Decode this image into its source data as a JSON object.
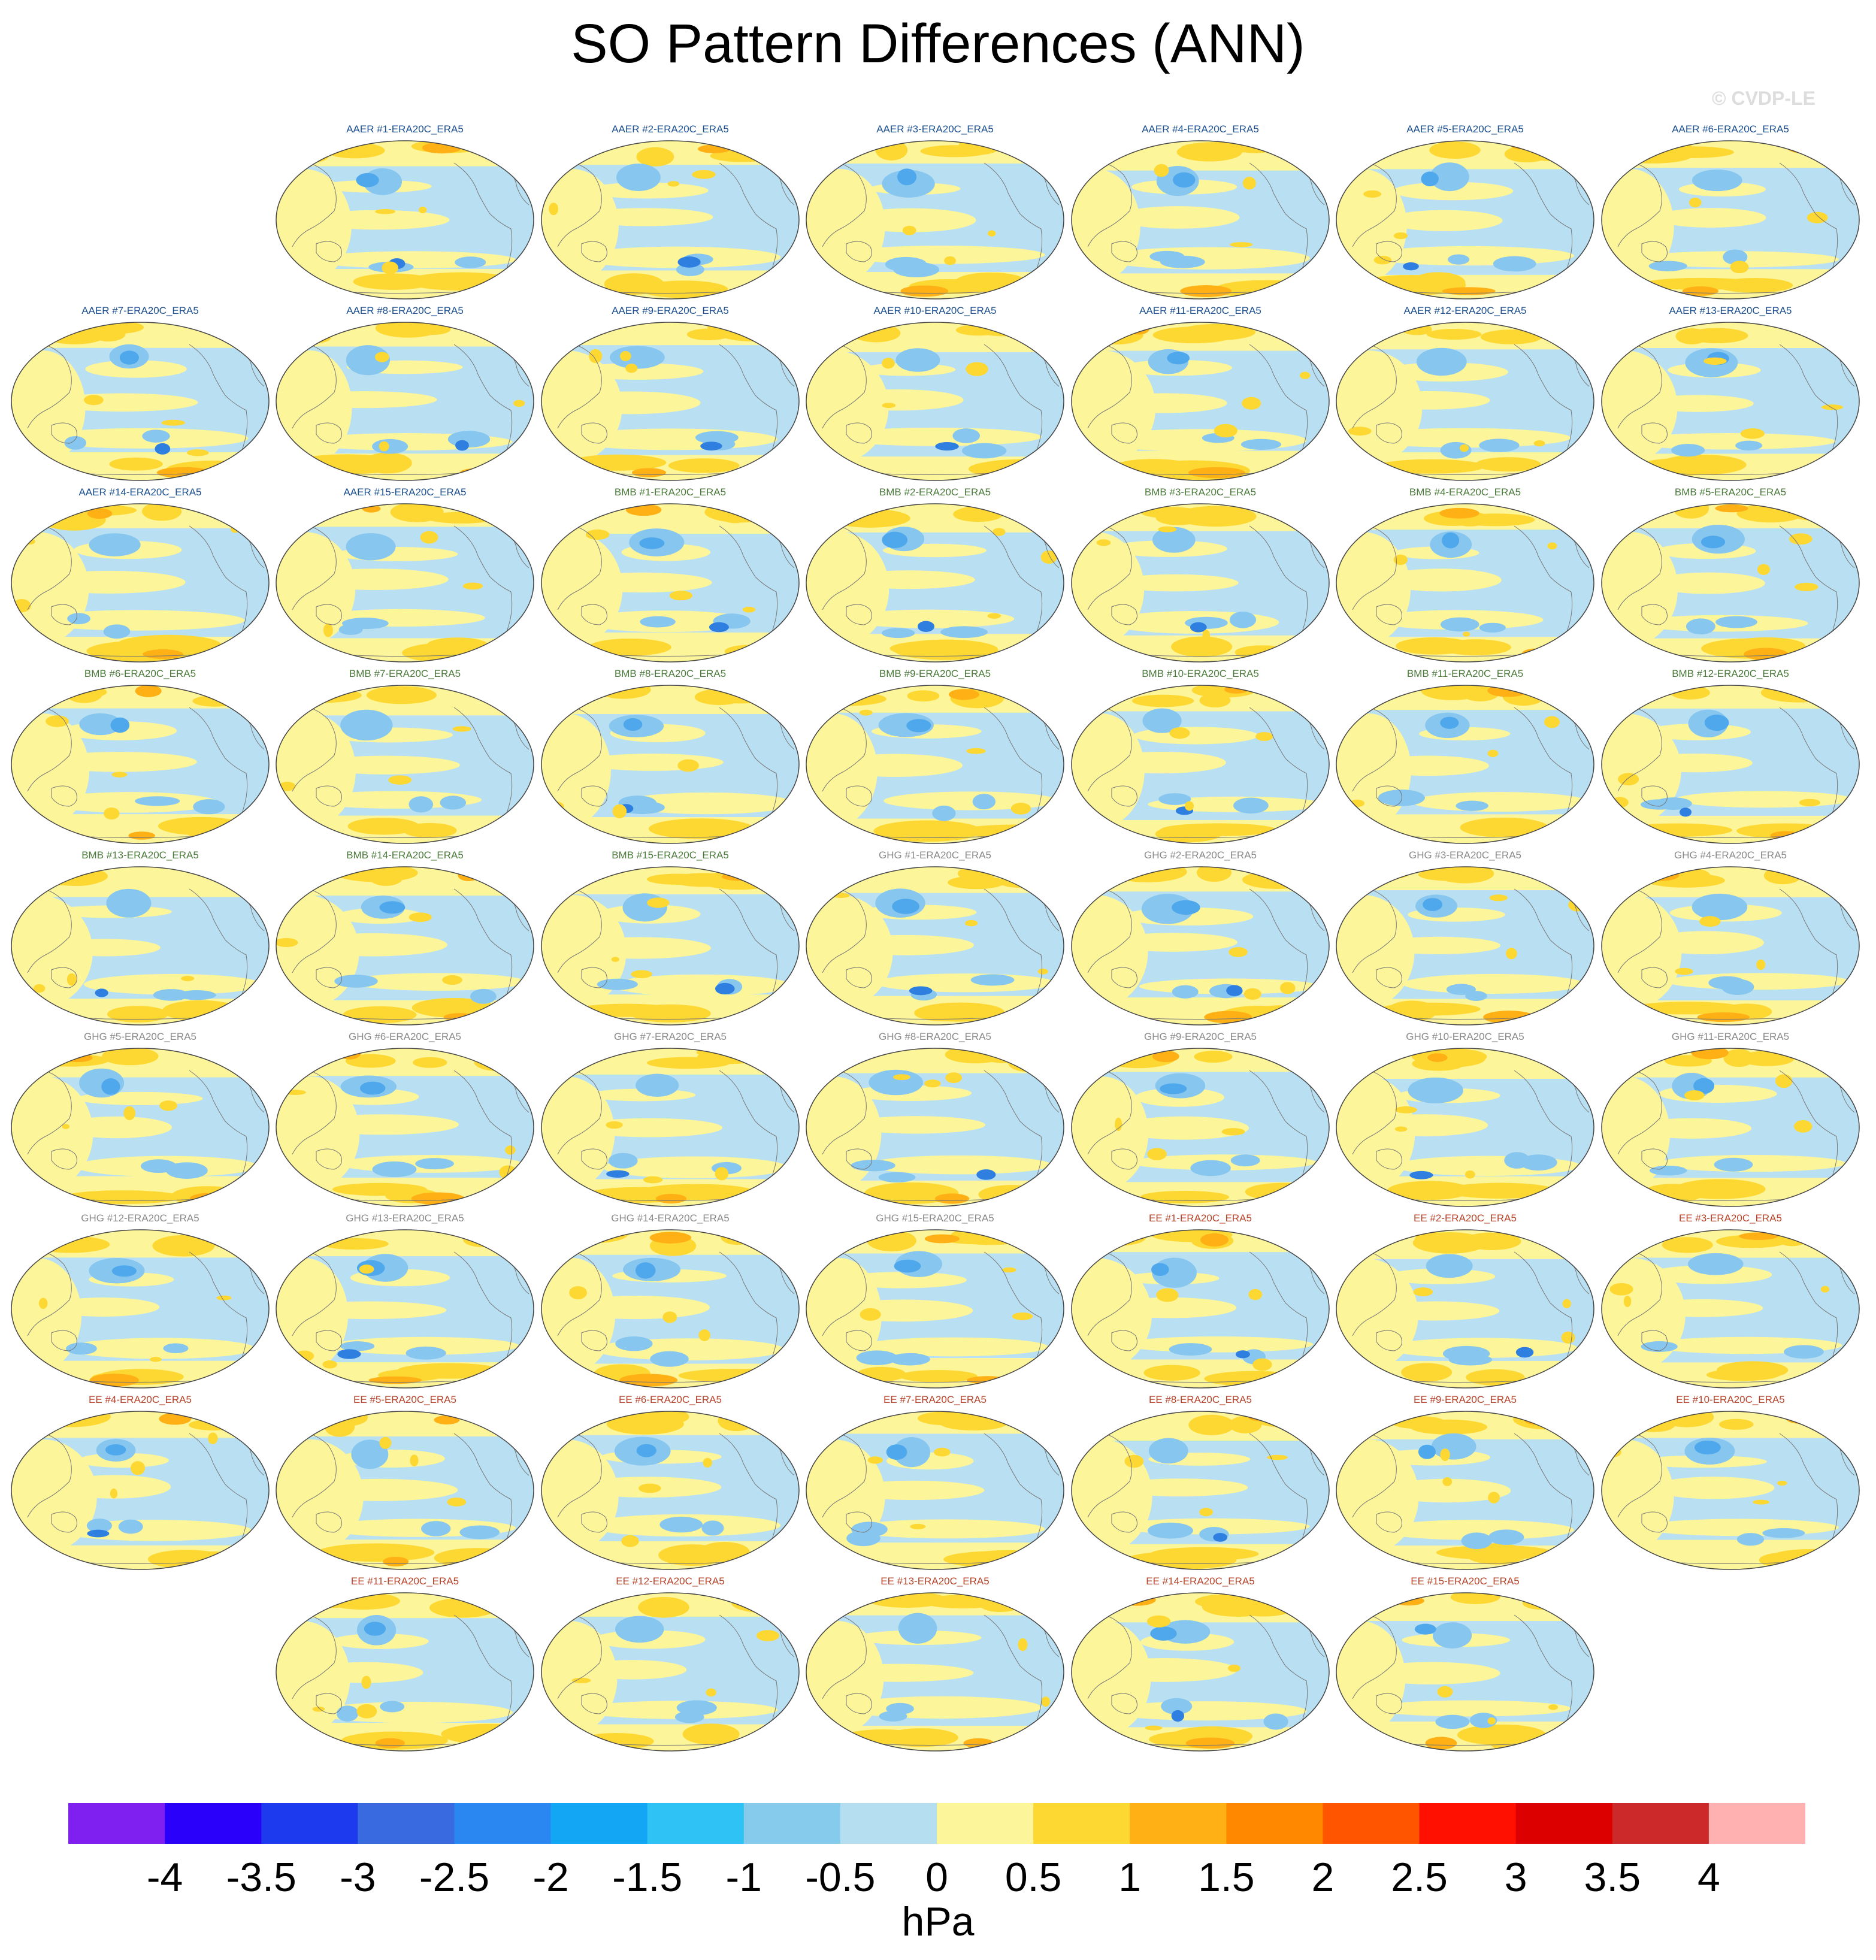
{
  "title": "SO Pattern Differences (ANN)",
  "watermark": "© CVDP-LE",
  "chart_data": {
    "type": "heatmap",
    "title": "SO Pattern Differences (ANN)",
    "projection": "global Robinson, Pacific-centered",
    "grid": false,
    "panel_layout": {
      "rows": 9,
      "columns": 7,
      "first_row_start_column": 2,
      "last_row_start_column": 2
    },
    "colors": {
      "AAER": "#1b4f8f",
      "BMB": "#4a7a3a",
      "GHG": "#8a8a8a",
      "EE": "#b5432a"
    },
    "panels": [
      {
        "label": "AAER #1-ERA20C_ERA5",
        "group": "AAER"
      },
      {
        "label": "AAER #2-ERA20C_ERA5",
        "group": "AAER"
      },
      {
        "label": "AAER #3-ERA20C_ERA5",
        "group": "AAER"
      },
      {
        "label": "AAER #4-ERA20C_ERA5",
        "group": "AAER"
      },
      {
        "label": "AAER #5-ERA20C_ERA5",
        "group": "AAER"
      },
      {
        "label": "AAER #6-ERA20C_ERA5",
        "group": "AAER"
      },
      {
        "label": "AAER #7-ERA20C_ERA5",
        "group": "AAER"
      },
      {
        "label": "AAER #8-ERA20C_ERA5",
        "group": "AAER"
      },
      {
        "label": "AAER #9-ERA20C_ERA5",
        "group": "AAER"
      },
      {
        "label": "AAER #10-ERA20C_ERA5",
        "group": "AAER"
      },
      {
        "label": "AAER #11-ERA20C_ERA5",
        "group": "AAER"
      },
      {
        "label": "AAER #12-ERA20C_ERA5",
        "group": "AAER"
      },
      {
        "label": "AAER #13-ERA20C_ERA5",
        "group": "AAER"
      },
      {
        "label": "AAER #14-ERA20C_ERA5",
        "group": "AAER"
      },
      {
        "label": "AAER #15-ERA20C_ERA5",
        "group": "AAER"
      },
      {
        "label": "BMB #1-ERA20C_ERA5",
        "group": "BMB"
      },
      {
        "label": "BMB #2-ERA20C_ERA5",
        "group": "BMB"
      },
      {
        "label": "BMB #3-ERA20C_ERA5",
        "group": "BMB"
      },
      {
        "label": "BMB #4-ERA20C_ERA5",
        "group": "BMB"
      },
      {
        "label": "BMB #5-ERA20C_ERA5",
        "group": "BMB"
      },
      {
        "label": "BMB #6-ERA20C_ERA5",
        "group": "BMB"
      },
      {
        "label": "BMB #7-ERA20C_ERA5",
        "group": "BMB"
      },
      {
        "label": "BMB #8-ERA20C_ERA5",
        "group": "BMB"
      },
      {
        "label": "BMB #9-ERA20C_ERA5",
        "group": "BMB"
      },
      {
        "label": "BMB #10-ERA20C_ERA5",
        "group": "BMB"
      },
      {
        "label": "BMB #11-ERA20C_ERA5",
        "group": "BMB"
      },
      {
        "label": "BMB #12-ERA20C_ERA5",
        "group": "BMB"
      },
      {
        "label": "BMB #13-ERA20C_ERA5",
        "group": "BMB"
      },
      {
        "label": "BMB #14-ERA20C_ERA5",
        "group": "BMB"
      },
      {
        "label": "BMB #15-ERA20C_ERA5",
        "group": "BMB"
      },
      {
        "label": "GHG #1-ERA20C_ERA5",
        "group": "GHG"
      },
      {
        "label": "GHG #2-ERA20C_ERA5",
        "group": "GHG"
      },
      {
        "label": "GHG #3-ERA20C_ERA5",
        "group": "GHG"
      },
      {
        "label": "GHG #4-ERA20C_ERA5",
        "group": "GHG"
      },
      {
        "label": "GHG #5-ERA20C_ERA5",
        "group": "GHG"
      },
      {
        "label": "GHG #6-ERA20C_ERA5",
        "group": "GHG"
      },
      {
        "label": "GHG #7-ERA20C_ERA5",
        "group": "GHG"
      },
      {
        "label": "GHG #8-ERA20C_ERA5",
        "group": "GHG"
      },
      {
        "label": "GHG #9-ERA20C_ERA5",
        "group": "GHG"
      },
      {
        "label": "GHG #10-ERA20C_ERA5",
        "group": "GHG"
      },
      {
        "label": "GHG #11-ERA20C_ERA5",
        "group": "GHG"
      },
      {
        "label": "GHG #12-ERA20C_ERA5",
        "group": "GHG"
      },
      {
        "label": "GHG #13-ERA20C_ERA5",
        "group": "GHG"
      },
      {
        "label": "GHG #14-ERA20C_ERA5",
        "group": "GHG"
      },
      {
        "label": "GHG #15-ERA20C_ERA5",
        "group": "GHG"
      },
      {
        "label": "EE #1-ERA20C_ERA5",
        "group": "EE"
      },
      {
        "label": "EE #2-ERA20C_ERA5",
        "group": "EE"
      },
      {
        "label": "EE #3-ERA20C_ERA5",
        "group": "EE"
      },
      {
        "label": "EE #4-ERA20C_ERA5",
        "group": "EE"
      },
      {
        "label": "EE #5-ERA20C_ERA5",
        "group": "EE"
      },
      {
        "label": "EE #6-ERA20C_ERA5",
        "group": "EE"
      },
      {
        "label": "EE #7-ERA20C_ERA5",
        "group": "EE"
      },
      {
        "label": "EE #8-ERA20C_ERA5",
        "group": "EE"
      },
      {
        "label": "EE #9-ERA20C_ERA5",
        "group": "EE"
      },
      {
        "label": "EE #10-ERA20C_ERA5",
        "group": "EE"
      },
      {
        "label": "EE #11-ERA20C_ERA5",
        "group": "EE"
      },
      {
        "label": "EE #12-ERA20C_ERA5",
        "group": "EE"
      },
      {
        "label": "EE #13-ERA20C_ERA5",
        "group": "EE"
      },
      {
        "label": "EE #14-ERA20C_ERA5",
        "group": "EE"
      },
      {
        "label": "EE #15-ERA20C_ERA5",
        "group": "EE"
      }
    ],
    "colorbar": {
      "units": "hPa",
      "range": [
        -4.5,
        4.5
      ],
      "ticks": [
        "-4",
        "-3.5",
        "-3",
        "-2.5",
        "-2",
        "-1.5",
        "-1",
        "-0.5",
        "0",
        "0.5",
        "1",
        "1.5",
        "2",
        "2.5",
        "3",
        "3.5",
        "4"
      ],
      "colors": [
        "#7f1ff0",
        "#2a00fa",
        "#1e3aee",
        "#3a6ae0",
        "#2a86f0",
        "#13a6f5",
        "#2ec2f5",
        "#87cbec",
        "#b5dff0",
        "#fdf59a",
        "#fed832",
        "#ffb015",
        "#ff8800",
        "#ff5400",
        "#ff1000",
        "#dc0000",
        "#cc2a2a",
        "#ffb0b0"
      ]
    }
  }
}
